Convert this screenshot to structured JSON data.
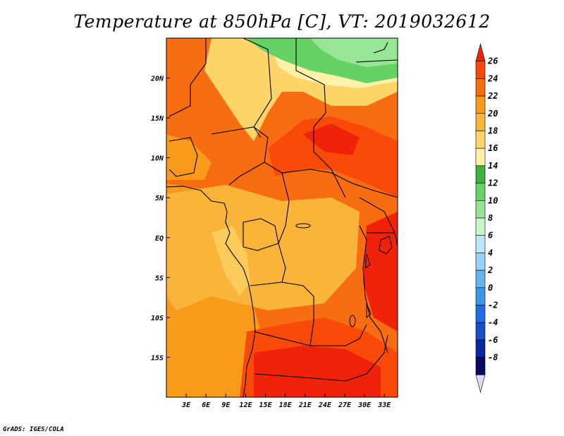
{
  "title": "Temperature at 850hPa [C], VT: 2019032612",
  "credit": "GrADS: IGES/COLA",
  "map": {
    "lon_range": [
      0,
      35
    ],
    "lat_range": [
      -20,
      25
    ],
    "x_ticks": [
      {
        "lon": 3,
        "label": "3E"
      },
      {
        "lon": 6,
        "label": "6E"
      },
      {
        "lon": 9,
        "label": "9E"
      },
      {
        "lon": 12,
        "label": "12E"
      },
      {
        "lon": 15,
        "label": "15E"
      },
      {
        "lon": 18,
        "label": "18E"
      },
      {
        "lon": 21,
        "label": "21E"
      },
      {
        "lon": 24,
        "label": "24E"
      },
      {
        "lon": 27,
        "label": "27E"
      },
      {
        "lon": 30,
        "label": "30E"
      },
      {
        "lon": 33,
        "label": "33E"
      }
    ],
    "y_ticks": [
      {
        "lat": 20,
        "label": "20N"
      },
      {
        "lat": 15,
        "label": "15N"
      },
      {
        "lat": 10,
        "label": "10N"
      },
      {
        "lat": 5,
        "label": "5N"
      },
      {
        "lat": 0,
        "label": "EQ"
      },
      {
        "lat": -5,
        "label": "5S"
      },
      {
        "lat": -10,
        "label": "10S"
      },
      {
        "lat": -15,
        "label": "15S"
      }
    ]
  },
  "colorbar": {
    "levels": [
      "26",
      "24",
      "22",
      "20",
      "18",
      "16",
      "14",
      "12",
      "10",
      "8",
      "6",
      "4",
      "2",
      "0",
      "-2",
      "-4",
      "-6",
      "-8"
    ],
    "colors": [
      "#f0220a",
      "#fa4a0a",
      "#f86c12",
      "#f99a1a",
      "#fbb43a",
      "#fcd468",
      "#fdf2a8",
      "#3cb43c",
      "#64d264",
      "#96e696",
      "#c8f5c8",
      "#bee6fa",
      "#96d2fa",
      "#64b4f0",
      "#3c96e6",
      "#1e6ee6",
      "#1450c8",
      "#0a28a0",
      "#0a0a64",
      "#dcdcfa"
    ]
  },
  "regions": [
    {
      "name": "sahara-north",
      "color": "#fcd468"
    },
    {
      "name": "north-africa-green",
      "color": "#64d264"
    },
    {
      "name": "central-africa-warm",
      "color": "#f86c12"
    },
    {
      "name": "congo-basin",
      "color": "#fbb43a"
    },
    {
      "name": "atlantic-coast",
      "color": "#f99a1a"
    },
    {
      "name": "southern-hot",
      "color": "#f0220a"
    },
    {
      "name": "east-africa-hot",
      "color": "#fa4a0a"
    }
  ]
}
